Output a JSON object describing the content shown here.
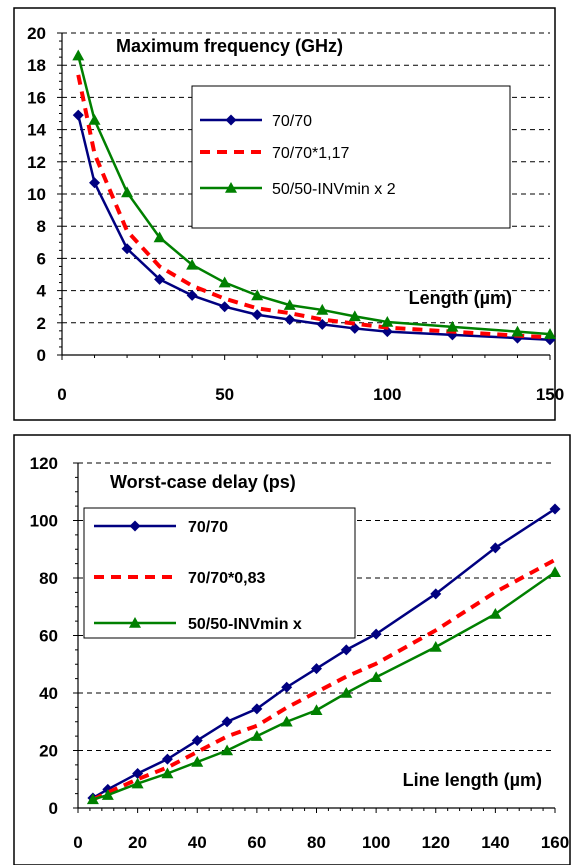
{
  "chart_data": [
    {
      "type": "line",
      "title": "Maximum frequency (GHz)",
      "xlabel": "Length (µm)",
      "ylabel": "",
      "xlim": [
        0,
        150
      ],
      "ylim": [
        0,
        20
      ],
      "x_ticks": [
        "0",
        "50",
        "100",
        "150"
      ],
      "y_ticks": [
        "0",
        "2",
        "4",
        "6",
        "8",
        "10",
        "12",
        "14",
        "16",
        "18",
        "20"
      ],
      "grid": "horizontal dashed",
      "legend_position": "inside upper-middle",
      "series": [
        {
          "name": "70/70",
          "color": "#000080",
          "style": "solid",
          "marker": "diamond",
          "x": [
            5,
            10,
            20,
            30,
            40,
            50,
            60,
            70,
            80,
            90,
            100,
            120,
            140,
            150
          ],
          "y": [
            14.9,
            10.7,
            6.6,
            4.7,
            3.7,
            3.0,
            2.5,
            2.2,
            1.9,
            1.65,
            1.45,
            1.25,
            1.05,
            0.95
          ]
        },
        {
          "name": "70/70*1,17",
          "color": "#ff0000",
          "style": "dashed",
          "marker": "none",
          "x": [
            5,
            10,
            20,
            30,
            40,
            50,
            60,
            70,
            80,
            90,
            100,
            120,
            140,
            150
          ],
          "y": [
            17.4,
            12.5,
            7.7,
            5.5,
            4.3,
            3.5,
            2.9,
            2.6,
            2.2,
            1.95,
            1.7,
            1.45,
            1.2,
            1.1
          ]
        },
        {
          "name": "50/50-INVmin x 2",
          "color": "#008000",
          "style": "solid",
          "marker": "triangle",
          "x": [
            5,
            10,
            20,
            30,
            40,
            50,
            60,
            70,
            80,
            90,
            100,
            120,
            140,
            150
          ],
          "y": [
            18.6,
            14.6,
            10.1,
            7.3,
            5.6,
            4.5,
            3.7,
            3.1,
            2.8,
            2.4,
            2.05,
            1.75,
            1.45,
            1.3
          ]
        }
      ]
    },
    {
      "type": "line",
      "title": "Worst-case delay (ps)",
      "xlabel": "Line length (µm)",
      "ylabel": "",
      "xlim": [
        0,
        160
      ],
      "ylim": [
        0,
        120
      ],
      "x_ticks": [
        "0",
        "20",
        "40",
        "60",
        "80",
        "100",
        "120",
        "140",
        "160"
      ],
      "y_ticks": [
        "0",
        "20",
        "40",
        "60",
        "80",
        "100",
        "120"
      ],
      "grid": "horizontal dashed",
      "legend_position": "inside upper-left",
      "series": [
        {
          "name": "70/70",
          "color": "#000080",
          "style": "solid",
          "marker": "diamond",
          "x": [
            5,
            10,
            20,
            30,
            40,
            50,
            60,
            70,
            80,
            90,
            100,
            120,
            140,
            160
          ],
          "y": [
            3.5,
            6.5,
            12,
            17,
            23.5,
            30,
            34.5,
            42,
            48.5,
            55,
            60.5,
            74.5,
            90.5,
            104
          ]
        },
        {
          "name": "70/70*0,83",
          "color": "#ff0000",
          "style": "dashed",
          "marker": "none",
          "x": [
            5,
            10,
            20,
            30,
            40,
            50,
            60,
            70,
            80,
            90,
            100,
            120,
            140,
            160
          ],
          "y": [
            2.9,
            5.4,
            10,
            14.1,
            19.5,
            24.9,
            28.6,
            34.9,
            40.3,
            45.7,
            50.2,
            61.8,
            75.1,
            86.3
          ]
        },
        {
          "name": "50/50-INVmin x",
          "color": "#008000",
          "style": "solid",
          "marker": "triangle",
          "x": [
            5,
            10,
            20,
            30,
            40,
            50,
            60,
            70,
            80,
            90,
            100,
            120,
            140,
            160
          ],
          "y": [
            3,
            4.5,
            8.5,
            12,
            16,
            20,
            25,
            30,
            34,
            40,
            45.5,
            56,
            67.5,
            82
          ]
        }
      ]
    }
  ]
}
